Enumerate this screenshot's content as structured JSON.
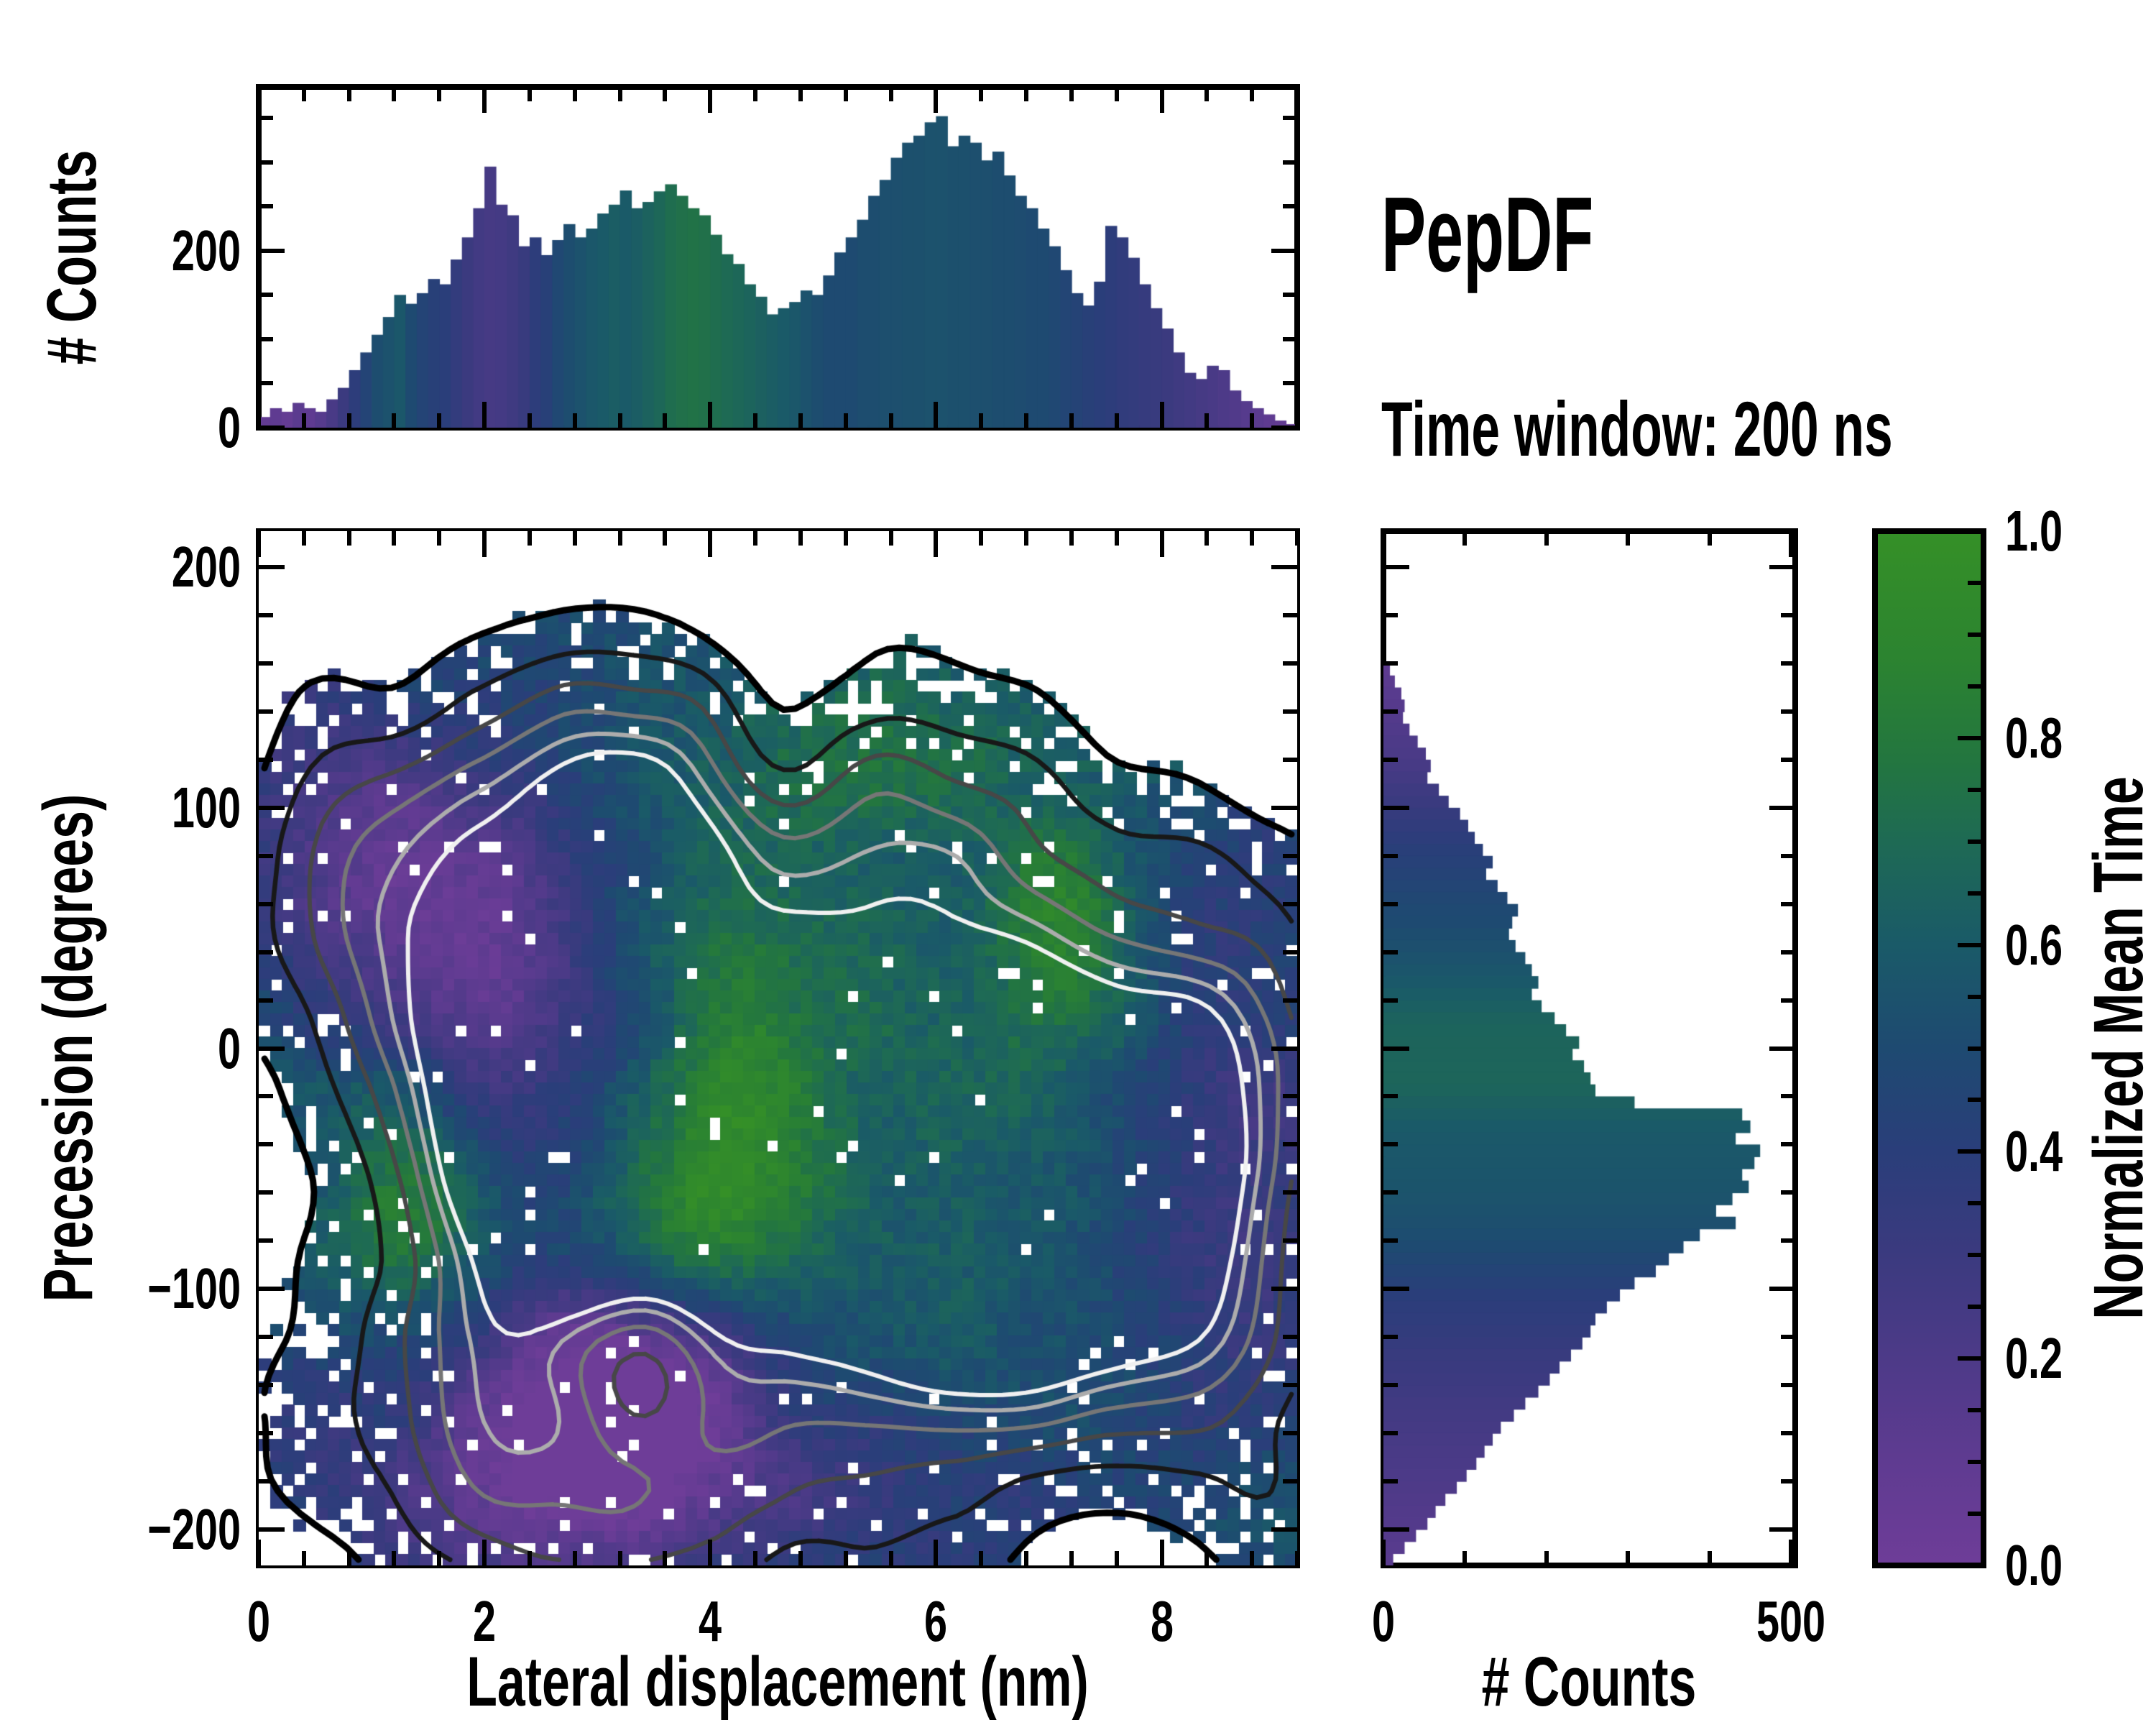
{
  "labels": {
    "title": "PepDF",
    "subtitle": "Time window: 200 ns",
    "top_ylabel": "# Counts",
    "main_ylabel": "Precession (degrees)",
    "main_xlabel": "Lateral displacement (nm)",
    "right_xlabel": "# Counts",
    "colorbar_label": "Normalized Mean Time"
  },
  "colors": {
    "axis": "#000000",
    "background": "#ffffff",
    "contour_levels": [
      "#000000",
      "#181818",
      "#474747",
      "#767676",
      "#acacac",
      "#f0f0f0"
    ]
  },
  "chart_data": {
    "top_histogram": {
      "type": "bar",
      "orientation": "vertical",
      "ylabel": "# Counts",
      "xlim": [
        0,
        9.2
      ],
      "ylim": [
        0,
        385
      ],
      "bin_width": 0.1,
      "x_first_center": 0.05,
      "ytick_values": [
        0,
        200
      ],
      "ytick_labels": [
        "0",
        "200"
      ],
      "y_minor_step": 50,
      "x_minor_step": 0.4,
      "values": [
        12,
        22,
        18,
        28,
        22,
        18,
        32,
        45,
        65,
        85,
        105,
        125,
        150,
        140,
        152,
        168,
        162,
        190,
        215,
        248,
        295,
        252,
        240,
        205,
        215,
        195,
        212,
        230,
        215,
        225,
        242,
        252,
        268,
        248,
        255,
        267,
        275,
        262,
        248,
        240,
        218,
        196,
        185,
        162,
        148,
        128,
        135,
        142,
        155,
        150,
        172,
        198,
        215,
        235,
        262,
        280,
        305,
        322,
        330,
        345,
        352,
        318,
        330,
        322,
        302,
        312,
        285,
        262,
        248,
        225,
        205,
        178,
        152,
        138,
        165,
        228,
        215,
        192,
        162,
        135,
        112,
        85,
        62,
        55,
        70,
        65,
        42,
        30,
        22,
        15,
        8,
        4
      ],
      "mean_time": [
        0.08,
        0.1,
        0.07,
        0.12,
        0.1,
        0.15,
        0.22,
        0.3,
        0.38,
        0.45,
        0.52,
        0.55,
        0.58,
        0.5,
        0.45,
        0.42,
        0.4,
        0.35,
        0.3,
        0.26,
        0.24,
        0.25,
        0.28,
        0.32,
        0.38,
        0.42,
        0.48,
        0.52,
        0.55,
        0.58,
        0.6,
        0.62,
        0.6,
        0.62,
        0.65,
        0.68,
        0.72,
        0.74,
        0.75,
        0.74,
        0.72,
        0.7,
        0.68,
        0.66,
        0.64,
        0.62,
        0.6,
        0.58,
        0.55,
        0.52,
        0.5,
        0.5,
        0.5,
        0.52,
        0.52,
        0.53,
        0.53,
        0.54,
        0.54,
        0.55,
        0.55,
        0.54,
        0.54,
        0.53,
        0.53,
        0.52,
        0.52,
        0.51,
        0.5,
        0.5,
        0.48,
        0.46,
        0.44,
        0.42,
        0.4,
        0.38,
        0.36,
        0.35,
        0.33,
        0.32,
        0.3,
        0.28,
        0.26,
        0.24,
        0.22,
        0.2,
        0.18,
        0.15,
        0.12,
        0.1,
        0.08,
        0.06
      ]
    },
    "main_heatmap": {
      "type": "heatmap",
      "xlabel": "Lateral displacement (nm)",
      "ylabel": "Precession (degrees)",
      "color_meaning": "normalized mean time 0-1 via colormap; white = no data",
      "xlim": [
        0,
        9.2
      ],
      "ylim": [
        -215,
        215
      ],
      "xtick_values": [
        0,
        2,
        4,
        6,
        8
      ],
      "xtick_labels": [
        "0",
        "2",
        "4",
        "6",
        "8"
      ],
      "ytick_values": [
        200,
        100,
        0,
        -100,
        -200
      ],
      "ytick_labels": [
        "200",
        "100",
        "0",
        "−100",
        "−200"
      ],
      "x_minor_step": 0.4,
      "y_minor_step": 20,
      "grid": {
        "nx": 90,
        "ny": 90
      },
      "mask_threshold": 0.18,
      "contour_levels": [
        0.18,
        0.36,
        0.52,
        0.66,
        0.78,
        0.88
      ],
      "noise_seed": 7,
      "density_gaussians": [
        [
          2.7,
          -8,
          1.0,
          58,
          0.95
        ],
        [
          3.3,
          -42,
          1.05,
          55,
          0.9
        ],
        [
          6.05,
          -35,
          1.15,
          62,
          0.95
        ],
        [
          6.55,
          -80,
          0.95,
          55,
          0.85
        ],
        [
          4.7,
          -60,
          1.5,
          75,
          0.6
        ],
        [
          2.2,
          -150,
          1.1,
          60,
          0.5
        ],
        [
          7.9,
          -45,
          0.85,
          85,
          0.62
        ],
        [
          8.8,
          -10,
          0.6,
          50,
          0.3
        ],
        [
          1.05,
          70,
          0.8,
          55,
          0.5
        ],
        [
          4.9,
          95,
          1.9,
          48,
          0.55
        ],
        [
          3.0,
          120,
          1.1,
          40,
          0.42
        ],
        [
          3.6,
          -185,
          1.4,
          40,
          0.35
        ],
        [
          8.6,
          -120,
          0.7,
          60,
          0.3
        ],
        [
          3.35,
          -122,
          0.5,
          30,
          -0.5
        ],
        [
          4.6,
          130,
          0.45,
          35,
          -0.35
        ]
      ],
      "meantime_gaussians": [
        [
          1.05,
          75,
          0.75,
          48,
          -0.42
        ],
        [
          2.1,
          40,
          0.6,
          55,
          -0.38
        ],
        [
          2.6,
          -165,
          1.1,
          42,
          -0.45
        ],
        [
          3.6,
          -135,
          0.8,
          35,
          -0.3
        ],
        [
          4.35,
          -5,
          0.6,
          40,
          0.45
        ],
        [
          1.3,
          -68,
          0.5,
          30,
          0.42
        ],
        [
          7.15,
          55,
          0.45,
          26,
          0.38
        ],
        [
          3.8,
          -80,
          0.55,
          28,
          0.3
        ],
        [
          5.5,
          100,
          1.6,
          45,
          0.22
        ],
        [
          6.2,
          -40,
          1.0,
          60,
          0.15
        ],
        [
          8.5,
          -60,
          0.8,
          70,
          -0.25
        ],
        [
          4.9,
          -190,
          1.5,
          30,
          -0.2
        ]
      ]
    },
    "right_histogram": {
      "type": "bar",
      "orientation": "horizontal",
      "xlabel": "# Counts",
      "xlim": [
        0,
        505
      ],
      "ylim": [
        -215,
        215
      ],
      "bin_width": 5,
      "y_first_center": 212.5,
      "xtick_values": [
        0,
        500
      ],
      "xtick_labels": [
        "0",
        "500"
      ],
      "x_minor_step": 100,
      "y_minor_step": 20,
      "values": [
        0,
        0,
        0,
        0,
        0,
        0,
        0,
        0,
        0,
        0,
        0,
        8,
        14,
        22,
        26,
        24,
        32,
        42,
        52,
        58,
        54,
        68,
        80,
        94,
        104,
        112,
        122,
        134,
        126,
        140,
        152,
        165,
        158,
        154,
        162,
        174,
        182,
        190,
        182,
        194,
        210,
        224,
        240,
        232,
        246,
        254,
        260,
        308,
        440,
        450,
        432,
        462,
        455,
        440,
        448,
        428,
        408,
        432,
        388,
        368,
        350,
        334,
        308,
        290,
        274,
        260,
        254,
        244,
        230,
        216,
        204,
        190,
        174,
        160,
        144,
        134,
        124,
        114,
        102,
        90,
        76,
        64,
        54,
        40,
        26,
        12
      ],
      "mean_time_profile": [
        [
          215,
          0.1
        ],
        [
          160,
          0.1
        ],
        [
          120,
          0.22
        ],
        [
          80,
          0.42
        ],
        [
          40,
          0.54
        ],
        [
          10,
          0.66
        ],
        [
          -15,
          0.67
        ],
        [
          -35,
          0.59
        ],
        [
          -60,
          0.56
        ],
        [
          -80,
          0.51
        ],
        [
          -100,
          0.41
        ],
        [
          -130,
          0.31
        ],
        [
          -160,
          0.24
        ],
        [
          -190,
          0.18
        ],
        [
          -215,
          0.13
        ]
      ]
    },
    "colorbar": {
      "label": "Normalized Mean Time",
      "range": [
        0,
        1
      ],
      "tick_values": [
        1.0,
        0.8,
        0.6,
        0.4,
        0.2,
        0.0
      ],
      "tick_labels": [
        "1.0",
        "0.8",
        "0.6",
        "0.4",
        "0.2",
        "0.0"
      ],
      "minor_step": 0.05,
      "stops": [
        [
          0,
          "#6e3d98"
        ],
        [
          0.1,
          "#5f3b91"
        ],
        [
          0.2,
          "#4d3a88"
        ],
        [
          0.3,
          "#3b3a7f"
        ],
        [
          0.4,
          "#2a3e7a"
        ],
        [
          0.5,
          "#1e4a71"
        ],
        [
          0.6,
          "#1a5a68"
        ],
        [
          0.7,
          "#1e6a54"
        ],
        [
          0.78,
          "#23763f"
        ],
        [
          0.88,
          "#2c8430"
        ],
        [
          1,
          "#359027"
        ]
      ]
    }
  }
}
